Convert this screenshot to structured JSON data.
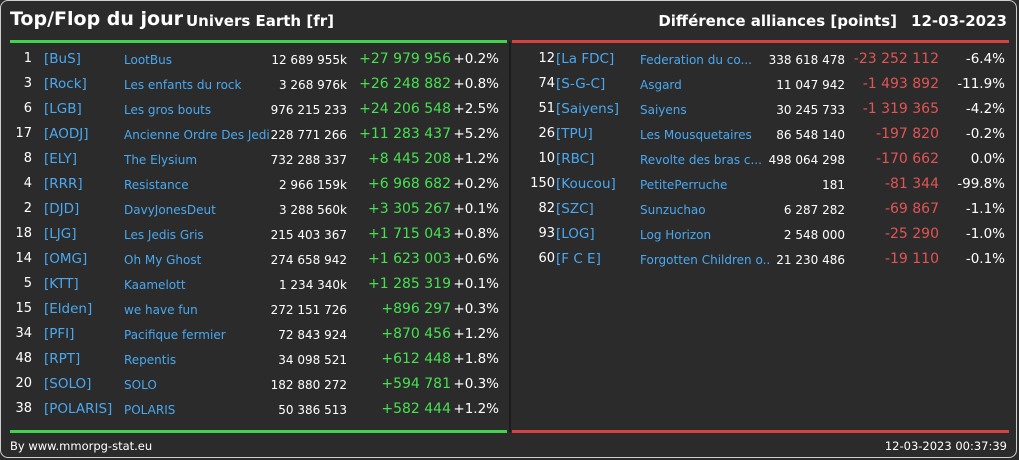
{
  "header": {
    "title": "Top/Flop du jour",
    "universe": "Univers Earth [fr]",
    "category": "Différence alliances [points]",
    "date": "12-03-2023"
  },
  "colors": {
    "background": "#2b2b2b",
    "tag": "#4aa8f0",
    "positive": "#47e052",
    "negative": "#e35454",
    "top_bar": "#3fd44c",
    "flop_bar": "#d84141"
  },
  "top": [
    {
      "rank": "1",
      "tag": "[BuS]",
      "name": "LootBus",
      "points": "12 689 955k",
      "diff": "+27 979 956",
      "pct": "+0.2%"
    },
    {
      "rank": "3",
      "tag": "[Rock]",
      "name": "Les enfants du rock",
      "points": "3 268 976k",
      "diff": "+26 248 882",
      "pct": "+0.8%"
    },
    {
      "rank": "6",
      "tag": "[LGB]",
      "name": "Les gros bouts",
      "points": "976 215 233",
      "diff": "+24 206 548",
      "pct": "+2.5%"
    },
    {
      "rank": "17",
      "tag": "[AODJ]",
      "name": "Ancienne Ordre Des Jedi",
      "points": "228 771 266",
      "diff": "+11 283 437",
      "pct": "+5.2%"
    },
    {
      "rank": "8",
      "tag": "[ELY]",
      "name": "The Elysium",
      "points": "732 288 337",
      "diff": "+8 445 208",
      "pct": "+1.2%"
    },
    {
      "rank": "4",
      "tag": "[RRR]",
      "name": "Resistance",
      "points": "2 966 159k",
      "diff": "+6 968 682",
      "pct": "+0.2%"
    },
    {
      "rank": "2",
      "tag": "[DJD]",
      "name": "DavyJonesDeut",
      "points": "3 288 560k",
      "diff": "+3 305 267",
      "pct": "+0.1%"
    },
    {
      "rank": "18",
      "tag": "[LJG]",
      "name": "Les Jedis Gris",
      "points": "215 403 367",
      "diff": "+1 715 043",
      "pct": "+0.8%"
    },
    {
      "rank": "14",
      "tag": "[OMG]",
      "name": "Oh My Ghost",
      "points": "274 658 942",
      "diff": "+1 623 003",
      "pct": "+0.6%"
    },
    {
      "rank": "5",
      "tag": "[KTT]",
      "name": "Kaamelott",
      "points": "1 234 340k",
      "diff": "+1 285 319",
      "pct": "+0.1%"
    },
    {
      "rank": "15",
      "tag": "[Elden]",
      "name": "we have fun",
      "points": "272 151 726",
      "diff": "+896 297",
      "pct": "+0.3%"
    },
    {
      "rank": "34",
      "tag": "[PFI]",
      "name": "Pacifique fermier",
      "points": "72 843 924",
      "diff": "+870 456",
      "pct": "+1.2%"
    },
    {
      "rank": "48",
      "tag": "[RPT]",
      "name": "Repentis",
      "points": "34 098 521",
      "diff": "+612 448",
      "pct": "+1.8%"
    },
    {
      "rank": "20",
      "tag": "[SOLO]",
      "name": "SOLO",
      "points": "182 880 272",
      "diff": "+594 781",
      "pct": "+0.3%"
    },
    {
      "rank": "38",
      "tag": "[POLARIS]",
      "name": "POLARIS",
      "points": "50 386 513",
      "diff": "+582 444",
      "pct": "+1.2%"
    }
  ],
  "flop": [
    {
      "rank": "12",
      "tag": "[La FDC]",
      "name": "Federation du co...",
      "points": "338 618 478",
      "diff": "-23 252 112",
      "pct": "-6.4%"
    },
    {
      "rank": "74",
      "tag": "[S-G-C]",
      "name": "Asgard",
      "points": "11 047 942",
      "diff": "-1 493 892",
      "pct": "-11.9%"
    },
    {
      "rank": "51",
      "tag": "[Saiyens]",
      "name": "Saiyens",
      "points": "30 245 733",
      "diff": "-1 319 365",
      "pct": "-4.2%"
    },
    {
      "rank": "26",
      "tag": "[TPU]",
      "name": "Les Mousquetaires",
      "points": "86 548 140",
      "diff": "-197 820",
      "pct": "-0.2%"
    },
    {
      "rank": "10",
      "tag": "[RBC]",
      "name": "Revolte des bras c...",
      "points": "498 064 298",
      "diff": "-170 662",
      "pct": "0.0%"
    },
    {
      "rank": "150",
      "tag": "[Koucou]",
      "name": "PetitePerruche",
      "points": "181",
      "diff": "-81 344",
      "pct": "-99.8%"
    },
    {
      "rank": "82",
      "tag": "[SZC]",
      "name": "Sunzuchao",
      "points": "6 287 282",
      "diff": "-69 867",
      "pct": "-1.1%"
    },
    {
      "rank": "93",
      "tag": "[LOG]",
      "name": "Log Horizon",
      "points": "2 548 000",
      "diff": "-25 290",
      "pct": "-1.0%"
    },
    {
      "rank": "60",
      "tag": "[F C E]",
      "name": "Forgotten Children o...",
      "points": "21 230 486",
      "diff": "-19 110",
      "pct": "-0.1%"
    }
  ],
  "footer": {
    "source": "By www.mmorpg-stat.eu",
    "timestamp": "12-03-2023 00:37:39"
  }
}
